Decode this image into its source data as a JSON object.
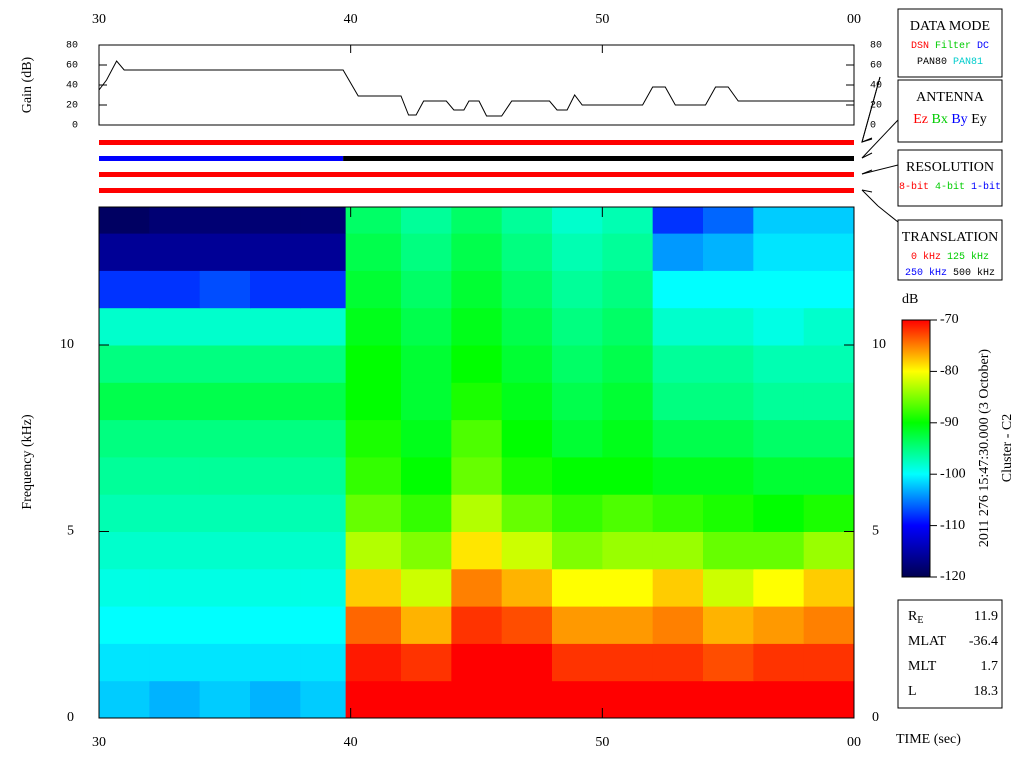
{
  "chart_data": [
    {
      "type": "line",
      "y_label": "Gain (dB)",
      "color": "#000000",
      "x": [
        30,
        30.3,
        30.7,
        31,
        39.7,
        40.3,
        42,
        42.3,
        42.6,
        42.9,
        43.8,
        44.1,
        44.5,
        44.7,
        45.1,
        45.4,
        46,
        46.4,
        47.9,
        48.2,
        48.6,
        48.9,
        49.2,
        51.6,
        52,
        52.5,
        52.9,
        54.1,
        54.5,
        55,
        55.4,
        60
      ],
      "values": [
        35,
        45,
        64,
        55,
        55,
        29,
        29,
        10,
        10,
        24,
        24,
        15,
        15,
        24,
        24,
        9,
        9,
        24,
        24,
        15,
        15,
        30,
        20,
        20,
        38,
        38,
        20,
        20,
        38,
        38,
        24,
        24
      ],
      "xlim": [
        30,
        60
      ],
      "xticks": [
        30,
        40,
        50,
        {
          "value": 60,
          "label": "00"
        }
      ],
      "ylim": [
        0,
        80
      ],
      "yticks": [
        0,
        20,
        40,
        60,
        80
      ]
    },
    {
      "type": "bands",
      "xlim": [
        30,
        60
      ],
      "bars": [
        {
          "segments": [
            {
              "start": 30,
              "end": 60,
              "color": "#ff0000"
            }
          ]
        },
        {
          "segments": [
            {
              "start": 30,
              "end": 39.7,
              "color": "#0000ff"
            },
            {
              "start": 39.7,
              "end": 60,
              "color": "#000000"
            }
          ]
        },
        {
          "segments": [
            {
              "start": 30,
              "end": 60,
              "color": "#ff0000"
            }
          ]
        },
        {
          "segments": [
            {
              "start": 30,
              "end": 60,
              "color": "#ff0000"
            }
          ]
        }
      ]
    },
    {
      "type": "heatmap",
      "x_label": "TIME (sec)",
      "y_label": "Frequency (kHz)",
      "xlim": [
        30,
        60
      ],
      "xticks": [
        30,
        40,
        50,
        {
          "value": 60,
          "label": "00"
        }
      ],
      "ylim": [
        0,
        13.7
      ],
      "yticks": [
        0,
        5,
        10
      ],
      "x_bins": [
        30,
        32,
        34,
        36,
        38,
        39.8,
        42,
        44,
        46,
        48,
        50,
        52,
        54,
        56,
        58,
        60
      ],
      "y_bins": [
        0,
        1,
        2,
        3,
        4,
        5,
        6,
        7,
        8,
        9,
        10,
        11,
        12,
        13,
        13.7
      ],
      "z": [
        [
          -102,
          -103,
          -102,
          -103,
          -102,
          -68,
          -68,
          -67,
          -67,
          -68,
          -68,
          -68,
          -68,
          -68,
          -68
        ],
        [
          -101,
          -101,
          -101,
          -101,
          -101,
          -71,
          -72,
          -70,
          -70,
          -72,
          -72,
          -72,
          -73,
          -72,
          -72
        ],
        [
          -100,
          -100,
          -100,
          -100,
          -100,
          -74,
          -77,
          -72,
          -73,
          -76,
          -76,
          -75,
          -77,
          -76,
          -75
        ],
        [
          -99,
          -99,
          -99,
          -99,
          -99,
          -78,
          -82,
          -75,
          -77,
          -80,
          -80,
          -78,
          -82,
          -80,
          -78
        ],
        [
          -98,
          -98,
          -98,
          -98,
          -98,
          -83,
          -85,
          -79,
          -82,
          -85,
          -84,
          -84,
          -86,
          -86,
          -84
        ],
        [
          -97,
          -97,
          -97,
          -97,
          -97,
          -86,
          -88,
          -83,
          -86,
          -88,
          -87,
          -88,
          -89,
          -90,
          -89
        ],
        [
          -96,
          -96,
          -96,
          -96,
          -96,
          -88,
          -90,
          -86,
          -89,
          -90,
          -90,
          -91,
          -91,
          -92,
          -92
        ],
        [
          -95,
          -95,
          -95,
          -95,
          -95,
          -89,
          -91,
          -87,
          -90,
          -92,
          -91,
          -93,
          -93,
          -94,
          -94
        ],
        [
          -93,
          -93,
          -93,
          -93,
          -93,
          -90,
          -92,
          -89,
          -91,
          -93,
          -92,
          -95,
          -95,
          -96,
          -96
        ],
        [
          -95,
          -95,
          -95,
          -95,
          -95,
          -90,
          -92,
          -90,
          -92,
          -94,
          -93,
          -96,
          -96,
          -97,
          -97
        ],
        [
          -98,
          -98,
          -98,
          -98,
          -98,
          -91,
          -93,
          -91,
          -93,
          -95,
          -94,
          -98,
          -98,
          -99,
          -98
        ],
        [
          -108,
          -108,
          -107,
          -108,
          -108,
          -92,
          -94,
          -92,
          -94,
          -96,
          -95,
          -100,
          -100,
          -100,
          -100
        ],
        [
          -116,
          -116,
          -116,
          -116,
          -116,
          -93,
          -95,
          -93,
          -95,
          -97,
          -96,
          -104,
          -103,
          -101,
          -101
        ],
        [
          -119,
          -118,
          -118,
          -118,
          -118,
          -94,
          -96,
          -94,
          -96,
          -98,
          -97,
          -108,
          -106,
          -102,
          -102
        ]
      ],
      "colorbar_label": "dB",
      "clim": [
        -120,
        -70
      ],
      "cticks": [
        -120,
        -110,
        -100,
        -90,
        -80,
        -70
      ],
      "colorscale": [
        "#000050",
        "#0000ff",
        "#00ffff",
        "#00ff00",
        "#ffff00",
        "#ff0000"
      ]
    }
  ],
  "legend_boxes": [
    {
      "title": "DATA MODE",
      "rows": [
        [
          {
            "label": "DSN",
            "color": "#ff0000"
          },
          {
            "label": "Filter",
            "color": "#00cc00"
          },
          {
            "label": "DC",
            "color": "#0000ff"
          }
        ],
        [
          {
            "label": "PAN80",
            "color": "#000000"
          },
          {
            "label": "PAN81",
            "color": "#00cccc"
          }
        ]
      ]
    },
    {
      "title": "ANTENNA",
      "rows": [
        [
          {
            "label": "Ez",
            "color": "#ff0000"
          },
          {
            "label": "Bx",
            "color": "#00cc00"
          },
          {
            "label": "By",
            "color": "#0000ff"
          },
          {
            "label": "Ey",
            "color": "#000000"
          }
        ]
      ]
    },
    {
      "title": "RESOLUTION",
      "rows": [
        [
          {
            "label": "8-bit",
            "color": "#ff0000"
          },
          {
            "label": "4-bit",
            "color": "#00cc00"
          },
          {
            "label": "1-bit",
            "color": "#0000ff"
          }
        ]
      ]
    },
    {
      "title": "TRANSLATION",
      "rows": [
        [
          {
            "label": "0 kHz",
            "color": "#ff0000"
          },
          {
            "label": "125 kHz",
            "color": "#00cc00"
          }
        ],
        [
          {
            "label": "250 kHz",
            "color": "#0000ff"
          },
          {
            "label": "500 kHz",
            "color": "#000000"
          }
        ]
      ]
    }
  ],
  "side_text": [
    "2011 276 15:47:30.000 (3 October)",
    "Cluster - C2"
  ],
  "info_box": [
    {
      "label": "R",
      "sub": "E",
      "value": 11.9
    },
    {
      "label": "MLAT",
      "value": -36.4
    },
    {
      "label": "MLT",
      "value": 1.7
    },
    {
      "label": "L",
      "value": 18.3
    }
  ]
}
